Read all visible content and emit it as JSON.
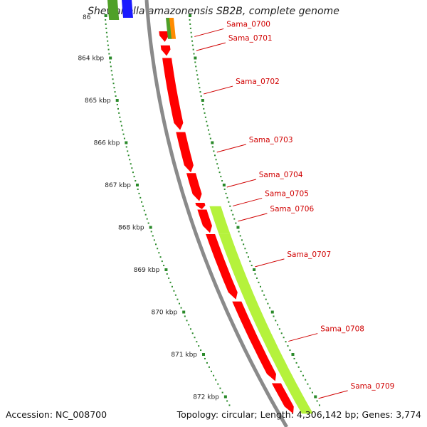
{
  "title": "Shewanella amazonensis SB2B, complete genome",
  "footer": {
    "accession": "Accession: NC_008700",
    "summary": "Topology: circular; Length: 4,306,142 bp; Genes: 3,774"
  },
  "colors": {
    "backbone": "#8a8a8a",
    "tick_dots": "#2a8a2a",
    "forward_strand": "#ff0000",
    "reverse_strand": "#b5f23c",
    "label_text": "#d00000",
    "misc_blue": "#1a1aff",
    "misc_green": "#4fa028",
    "misc_orange": "#ff8c00"
  },
  "ruler_labels": [
    "864 kbp",
    "865 kbp",
    "866 kbp",
    "867 kbp",
    "868 kbp",
    "869 kbp",
    "870 kbp",
    "871 kbp",
    "872 kbp"
  ],
  "partial_top_label": "86",
  "genes": [
    {
      "name": "Sama_0700",
      "start": 863.37,
      "end": 863.62,
      "strand": "+"
    },
    {
      "name": "Sama_0701",
      "start": 863.7,
      "end": 863.95,
      "strand": "+"
    },
    {
      "name": "Sama_0702",
      "start": 864.0,
      "end": 865.7,
      "strand": "+"
    },
    {
      "name": "Sama_0703",
      "start": 865.75,
      "end": 866.7,
      "strand": "+"
    },
    {
      "name": "Sama_0704",
      "start": 866.72,
      "end": 867.38,
      "strand": "+"
    },
    {
      "name": "Sama_0705",
      "start": 867.42,
      "end": 867.57,
      "strand": "+"
    },
    {
      "name": "Sama_0706",
      "start": 867.58,
      "end": 868.13,
      "strand": "+"
    },
    {
      "name": "Sama_0707",
      "start": 868.16,
      "end": 869.7,
      "strand": "+"
    },
    {
      "name": "Sama_0708",
      "start": 869.75,
      "end": 871.63,
      "strand": "+"
    },
    {
      "name": "Sama_0709",
      "start": 871.68,
      "end": 872.4,
      "strand": "+"
    }
  ],
  "reverse_features": [
    {
      "start": 867.5,
      "end": 868.15
    },
    {
      "start": 868.15,
      "end": 872.4
    }
  ]
}
